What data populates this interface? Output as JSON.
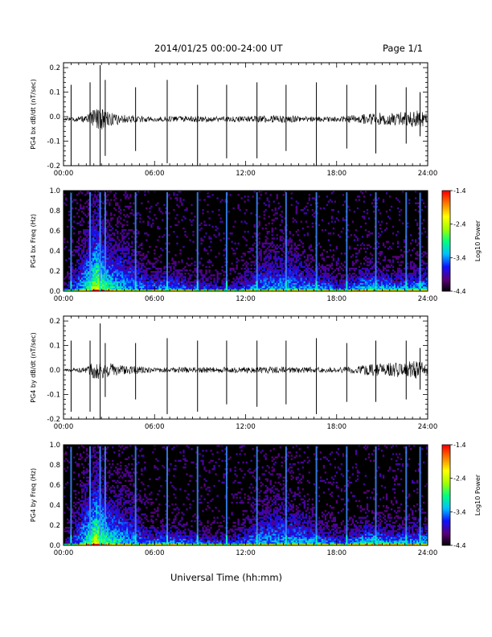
{
  "header": {
    "title": "2014/01/25  00:00-24:00 UT",
    "page": "Page 1/1"
  },
  "footer": {
    "xlabel": "Universal Time (hh:mm)"
  },
  "colors": {
    "trace": "#000000",
    "spectrogram_background": "#000000",
    "colorbar": [
      "#000000",
      "#5a007a",
      "#1010ff",
      "#00c0ff",
      "#00ff80",
      "#a0ff00",
      "#ffff00",
      "#ff8000",
      "#ff0000"
    ]
  },
  "chart_data": [
    {
      "type": "line",
      "ylabel": "PG4 bx dB/dt (nT/sec)",
      "xlim": [
        "00:00",
        "24:00"
      ],
      "ylim": [
        -0.2,
        0.22
      ],
      "xticks": [
        "00:00",
        "06:00",
        "12:00",
        "18:00",
        "24:00"
      ],
      "yticks": [
        "-0.2",
        "-0.1",
        "0.0",
        "0.1",
        "0.2"
      ],
      "baseline": -0.01,
      "noise_envelope": [
        {
          "t": 0.0,
          "amp": 0.004
        },
        {
          "t": 1.5,
          "amp": 0.015
        },
        {
          "t": 2.0,
          "amp": 0.04
        },
        {
          "t": 2.5,
          "amp": 0.05
        },
        {
          "t": 3.0,
          "amp": 0.03
        },
        {
          "t": 4.0,
          "amp": 0.018
        },
        {
          "t": 6.0,
          "amp": 0.01
        },
        {
          "t": 8.0,
          "amp": 0.012
        },
        {
          "t": 10.0,
          "amp": 0.012
        },
        {
          "t": 12.0,
          "amp": 0.012
        },
        {
          "t": 14.0,
          "amp": 0.015
        },
        {
          "t": 16.0,
          "amp": 0.012
        },
        {
          "t": 18.0,
          "amp": 0.01
        },
        {
          "t": 20.5,
          "amp": 0.025
        },
        {
          "t": 22.0,
          "amp": 0.03
        },
        {
          "t": 23.5,
          "amp": 0.035
        },
        {
          "t": 24.0,
          "amp": 0.02
        }
      ],
      "spikes": [
        {
          "time": "00:30",
          "max": 0.13,
          "min": -0.21
        },
        {
          "time": "01:45",
          "max": 0.14,
          "min": -0.21
        },
        {
          "time": "02:25",
          "max": 0.21,
          "min": -0.2
        },
        {
          "time": "02:45",
          "max": 0.15,
          "min": -0.16
        },
        {
          "time": "04:45",
          "max": 0.12,
          "min": -0.14
        },
        {
          "time": "06:50",
          "max": 0.15,
          "min": -0.19
        },
        {
          "time": "08:50",
          "max": 0.13,
          "min": -0.2
        },
        {
          "time": "10:45",
          "max": 0.13,
          "min": -0.17
        },
        {
          "time": "12:45",
          "max": 0.14,
          "min": -0.17
        },
        {
          "time": "14:40",
          "max": 0.13,
          "min": -0.14
        },
        {
          "time": "16:40",
          "max": 0.14,
          "min": -0.21
        },
        {
          "time": "18:40",
          "max": 0.13,
          "min": -0.13
        },
        {
          "time": "20:35",
          "max": 0.13,
          "min": -0.15
        },
        {
          "time": "22:35",
          "max": 0.12,
          "min": -0.11
        },
        {
          "time": "23:30",
          "max": 0.1,
          "min": -0.08
        }
      ]
    },
    {
      "type": "heatmap",
      "ylabel": "PG4 bx Freq (Hz)",
      "xlim": [
        "00:00",
        "24:00"
      ],
      "ylim": [
        0.0,
        1.0
      ],
      "xticks": [
        "00:00",
        "06:00",
        "12:00",
        "18:00",
        "24:00"
      ],
      "yticks": [
        "0.0",
        "0.2",
        "0.4",
        "0.6",
        "0.8",
        "1.0"
      ],
      "colorbar": {
        "label": "Log10 Power",
        "min": -4.4,
        "max": -1.4,
        "ticks": [
          "-1.4",
          "-2.4",
          "-3.4",
          "-4.4"
        ]
      },
      "activity": [
        {
          "t": 0.0,
          "level": 0.15,
          "height": 0.08
        },
        {
          "t": 1.0,
          "level": 0.35,
          "height": 0.3
        },
        {
          "t": 2.2,
          "level": 0.75,
          "height": 0.45
        },
        {
          "t": 3.0,
          "level": 0.55,
          "height": 0.3
        },
        {
          "t": 4.2,
          "level": 0.4,
          "height": 0.35
        },
        {
          "t": 5.5,
          "level": 0.35,
          "height": 0.15
        },
        {
          "t": 7.0,
          "level": 0.45,
          "height": 0.12
        },
        {
          "t": 9.0,
          "level": 0.35,
          "height": 0.1
        },
        {
          "t": 11.0,
          "level": 0.3,
          "height": 0.08
        },
        {
          "t": 13.0,
          "level": 0.4,
          "height": 0.22
        },
        {
          "t": 14.5,
          "level": 0.4,
          "height": 0.3
        },
        {
          "t": 16.5,
          "level": 0.45,
          "height": 0.15
        },
        {
          "t": 18.5,
          "level": 0.35,
          "height": 0.1
        },
        {
          "t": 20.0,
          "level": 0.55,
          "height": 0.15
        },
        {
          "t": 22.0,
          "level": 0.45,
          "height": 0.12
        },
        {
          "t": 24.0,
          "level": 0.5,
          "height": 0.15
        }
      ],
      "spike_lines": [
        "00:30",
        "01:45",
        "02:25",
        "02:45",
        "04:45",
        "06:50",
        "08:50",
        "10:45",
        "12:45",
        "14:40",
        "16:40",
        "18:40",
        "20:35",
        "22:35",
        "23:30"
      ]
    },
    {
      "type": "line",
      "ylabel": "PG4 by dB/dt (nT/sec)",
      "xlim": [
        "00:00",
        "24:00"
      ],
      "ylim": [
        -0.2,
        0.22
      ],
      "xticks": [
        "00:00",
        "06:00",
        "12:00",
        "18:00",
        "24:00"
      ],
      "yticks": [
        "-0.2",
        "-0.1",
        "0.0",
        "0.1",
        "0.2"
      ],
      "baseline": 0.0,
      "noise_envelope": [
        {
          "t": 0.0,
          "amp": 0.004
        },
        {
          "t": 1.5,
          "amp": 0.012
        },
        {
          "t": 2.0,
          "amp": 0.035
        },
        {
          "t": 2.5,
          "amp": 0.045
        },
        {
          "t": 3.0,
          "amp": 0.03
        },
        {
          "t": 4.0,
          "amp": 0.02
        },
        {
          "t": 6.0,
          "amp": 0.01
        },
        {
          "t": 8.0,
          "amp": 0.012
        },
        {
          "t": 10.0,
          "amp": 0.012
        },
        {
          "t": 12.0,
          "amp": 0.012
        },
        {
          "t": 14.0,
          "amp": 0.014
        },
        {
          "t": 16.0,
          "amp": 0.012
        },
        {
          "t": 18.0,
          "amp": 0.01
        },
        {
          "t": 20.5,
          "amp": 0.025
        },
        {
          "t": 22.0,
          "amp": 0.03
        },
        {
          "t": 23.5,
          "amp": 0.04
        },
        {
          "t": 24.0,
          "amp": 0.02
        }
      ],
      "spikes": [
        {
          "time": "00:30",
          "max": 0.12,
          "min": -0.17
        },
        {
          "time": "01:45",
          "max": 0.12,
          "min": -0.17
        },
        {
          "time": "02:25",
          "max": 0.19,
          "min": -0.2
        },
        {
          "time": "02:45",
          "max": 0.11,
          "min": -0.11
        },
        {
          "time": "04:45",
          "max": 0.11,
          "min": -0.12
        },
        {
          "time": "06:50",
          "max": 0.13,
          "min": -0.18
        },
        {
          "time": "08:50",
          "max": 0.12,
          "min": -0.17
        },
        {
          "time": "10:45",
          "max": 0.12,
          "min": -0.14
        },
        {
          "time": "12:45",
          "max": 0.12,
          "min": -0.15
        },
        {
          "time": "14:40",
          "max": 0.12,
          "min": -0.14
        },
        {
          "time": "16:40",
          "max": 0.13,
          "min": -0.18
        },
        {
          "time": "18:40",
          "max": 0.11,
          "min": -0.13
        },
        {
          "time": "20:35",
          "max": 0.12,
          "min": -0.13
        },
        {
          "time": "22:35",
          "max": 0.12,
          "min": -0.12
        },
        {
          "time": "23:30",
          "max": 0.09,
          "min": -0.08
        }
      ]
    },
    {
      "type": "heatmap",
      "ylabel": "PG4 by Freq (Hz)",
      "xlim": [
        "00:00",
        "24:00"
      ],
      "ylim": [
        0.0,
        1.0
      ],
      "xticks": [
        "00:00",
        "06:00",
        "12:00",
        "18:00",
        "24:00"
      ],
      "yticks": [
        "0.0",
        "0.2",
        "0.4",
        "0.6",
        "0.8",
        "1.0"
      ],
      "colorbar": {
        "label": "Log10 Power",
        "min": -4.4,
        "max": -1.4,
        "ticks": [
          "-1.4",
          "-2.4",
          "-3.4",
          "-4.4"
        ]
      },
      "activity": [
        {
          "t": 0.0,
          "level": 0.15,
          "height": 0.08
        },
        {
          "t": 1.0,
          "level": 0.35,
          "height": 0.3
        },
        {
          "t": 2.2,
          "level": 0.75,
          "height": 0.45
        },
        {
          "t": 3.0,
          "level": 0.55,
          "height": 0.3
        },
        {
          "t": 4.2,
          "level": 0.4,
          "height": 0.35
        },
        {
          "t": 5.5,
          "level": 0.35,
          "height": 0.15
        },
        {
          "t": 7.0,
          "level": 0.45,
          "height": 0.12
        },
        {
          "t": 9.0,
          "level": 0.35,
          "height": 0.1
        },
        {
          "t": 11.0,
          "level": 0.3,
          "height": 0.08
        },
        {
          "t": 13.0,
          "level": 0.4,
          "height": 0.25
        },
        {
          "t": 14.5,
          "level": 0.4,
          "height": 0.32
        },
        {
          "t": 16.5,
          "level": 0.45,
          "height": 0.15
        },
        {
          "t": 18.5,
          "level": 0.35,
          "height": 0.1
        },
        {
          "t": 20.0,
          "level": 0.55,
          "height": 0.15
        },
        {
          "t": 22.0,
          "level": 0.45,
          "height": 0.12
        },
        {
          "t": 24.0,
          "level": 0.5,
          "height": 0.15
        }
      ],
      "spike_lines": [
        "00:30",
        "01:45",
        "02:25",
        "02:45",
        "04:45",
        "06:50",
        "08:50",
        "10:45",
        "12:45",
        "14:40",
        "16:40",
        "18:40",
        "20:35",
        "22:35",
        "23:30"
      ]
    }
  ]
}
